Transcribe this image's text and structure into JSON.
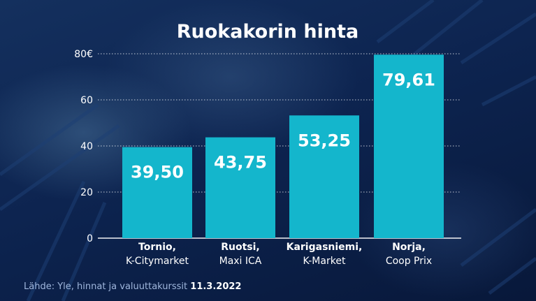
{
  "colors": {
    "bar": "#14b6cc",
    "grid": "#ffffff",
    "text": "#ffffff",
    "source_text": "#9fb6dc"
  },
  "chart_data": {
    "type": "bar",
    "title": "Ruokakorin hinta",
    "categories": [
      [
        "Tornio,",
        "K-Citymarket"
      ],
      [
        "Ruotsi,",
        "Maxi ICA"
      ],
      [
        "Karigasniemi,",
        "K-Market"
      ],
      [
        "Norja,",
        "Coop Prix"
      ]
    ],
    "values": [
      39.5,
      43.75,
      53.25,
      79.61
    ],
    "value_labels": [
      "39,50",
      "43,75",
      "53,25",
      "79,61"
    ],
    "yticks": [
      0,
      20,
      40,
      60,
      80
    ],
    "ytick_labels": [
      "0",
      "20",
      "40",
      "60",
      "80€"
    ],
    "ylim": [
      0,
      80
    ],
    "grid": true,
    "legend": "none"
  },
  "source": {
    "prefix": "Lähde: Yle, hinnat ja valuuttakurssit ",
    "date": "11.3.2022"
  }
}
